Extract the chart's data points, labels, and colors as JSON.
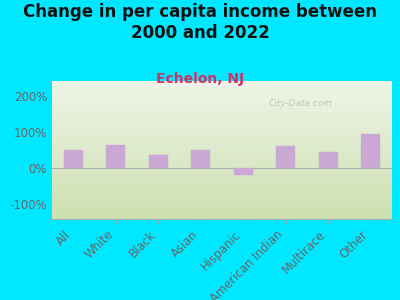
{
  "title": "Change in per capita income between\n2000 and 2022",
  "subtitle": "Echelon, NJ",
  "categories": [
    "All",
    "White",
    "Black",
    "Asian",
    "Hispanic",
    "American Indian",
    "Multirace",
    "Other"
  ],
  "values": [
    50,
    65,
    35,
    50,
    -20,
    60,
    45,
    95
  ],
  "bar_color": "#c9a8d4",
  "bar_edgecolor": "#c9a8d4",
  "background_outer": "#00e8ff",
  "plot_bg_top": "#f0f5e8",
  "plot_bg_bottom": "#cce0b0",
  "title_color": "#111111",
  "subtitle_color": "#cc3366",
  "tick_color": "#666666",
  "ylabel_ticks": [
    "-100%",
    "0%",
    "100%",
    "200%"
  ],
  "ylim": [
    -140,
    240
  ],
  "yticks": [
    -100,
    0,
    100,
    200
  ],
  "title_fontsize": 12,
  "subtitle_fontsize": 10,
  "tick_fontsize": 8.5,
  "watermark": "City-Data.com"
}
